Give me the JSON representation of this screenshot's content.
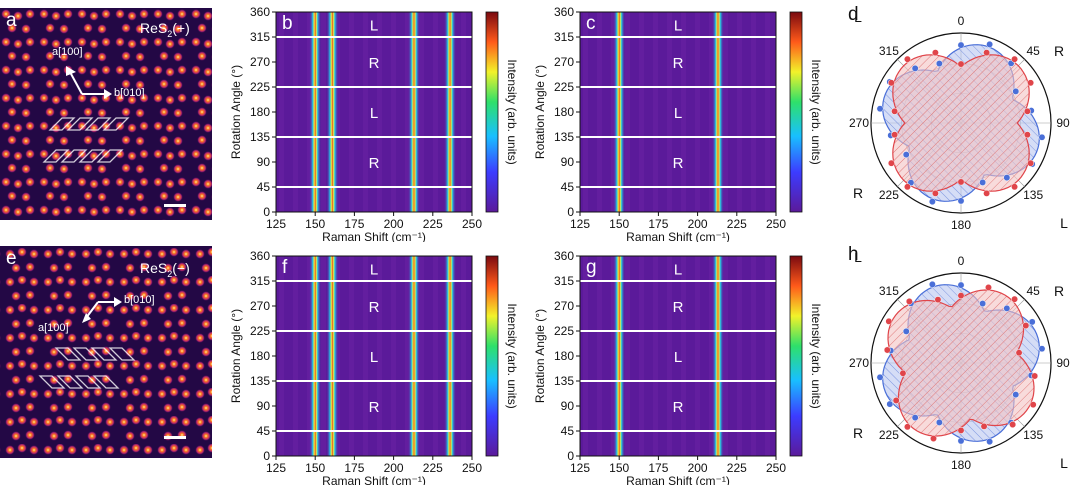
{
  "panel_letters": [
    "a",
    "b",
    "c",
    "d",
    "e",
    "f",
    "g",
    "h"
  ],
  "stem_images": [
    {
      "label": "ReS",
      "sub": "2",
      "sign": "(+)",
      "dir_a": "a[100]",
      "dir_b": "b[010]"
    },
    {
      "label": "ReS",
      "sub": "2",
      "sign": "(−)",
      "dir_a": "a[100]",
      "dir_b": "b[010]"
    }
  ],
  "colorbar_label": "Intensity (arb. units)",
  "map_axes": {
    "xlabel": "Raman Shift (cm⁻¹)",
    "ylabel": "Rotation Angle (°)",
    "xticks": [
      "125",
      "150",
      "175",
      "200",
      "225",
      "250"
    ],
    "yticks": [
      "0",
      "45",
      "90",
      "135",
      "180",
      "225",
      "270",
      "315",
      "360"
    ],
    "region_labels": [
      "R",
      "L",
      "R",
      "L"
    ]
  },
  "polar_axes": {
    "angle_labels": [
      "0",
      "45",
      "90",
      "135",
      "180",
      "225",
      "270",
      "315"
    ],
    "corner_labels": [
      "L",
      "R",
      "L",
      "R"
    ]
  },
  "colors": {
    "map_background": "#5b1a9a",
    "red_series": "#e0454a",
    "blue_series": "#4a6fd8"
  },
  "chart_data": [
    {
      "panel": "b",
      "type": "heatmap",
      "xlim": [
        125,
        250
      ],
      "ylim": [
        0,
        360
      ],
      "peaks_cm": [
        150,
        161,
        213,
        236
      ],
      "dividers_deg": [
        45,
        135,
        225,
        315
      ]
    },
    {
      "panel": "c",
      "type": "heatmap",
      "xlim": [
        125,
        250
      ],
      "ylim": [
        0,
        360
      ],
      "peaks_cm": [
        150,
        213
      ],
      "dividers_deg": [
        45,
        135,
        225,
        315
      ]
    },
    {
      "panel": "f",
      "type": "heatmap",
      "xlim": [
        125,
        250
      ],
      "ylim": [
        0,
        360
      ],
      "peaks_cm": [
        150,
        161,
        213,
        236
      ],
      "dividers_deg": [
        45,
        135,
        225,
        315
      ]
    },
    {
      "panel": "g",
      "type": "heatmap",
      "xlim": [
        125,
        250
      ],
      "ylim": [
        0,
        360
      ],
      "peaks_cm": [
        150,
        213
      ],
      "dividers_deg": [
        45,
        135,
        225,
        315
      ]
    },
    {
      "panel": "d",
      "type": "polar",
      "red_lobes_deg": [
        45,
        135,
        225,
        315
      ],
      "blue_lobes_deg": [
        20,
        110,
        200,
        290
      ]
    },
    {
      "panel": "h",
      "type": "polar",
      "red_lobes_deg": [
        35,
        125,
        215,
        305
      ],
      "blue_lobes_deg": [
        70,
        160,
        250,
        340
      ]
    }
  ]
}
